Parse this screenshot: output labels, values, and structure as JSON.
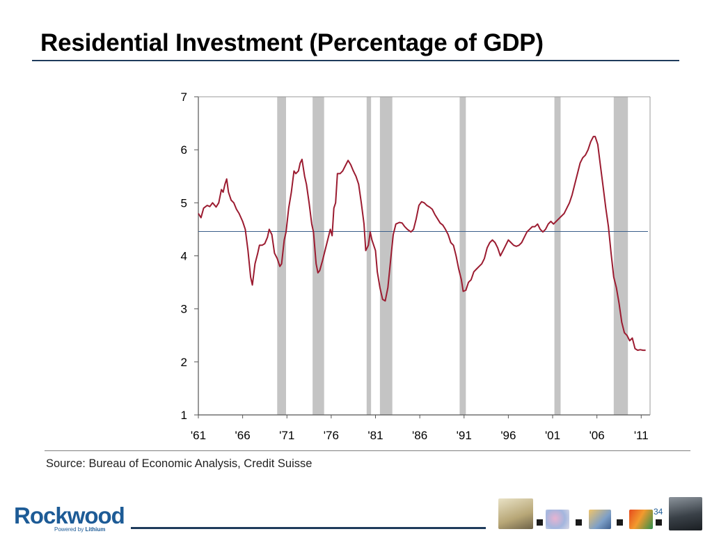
{
  "slide": {
    "title": "Residential Investment (Percentage of GDP)",
    "source": "Source: Bureau of Economic Analysis, Credit Suisse",
    "page_number": "34",
    "logo": {
      "word": "Rockwood",
      "tagline_prefix": "Powered by ",
      "tagline_brand": "Lithium"
    },
    "colors": {
      "title_rule": "#1f3b5c",
      "logo": "#1d5b96"
    }
  },
  "chart_data": {
    "type": "line",
    "title": "",
    "xlabel": "",
    "ylabel": "",
    "xlim": [
      1961,
      2012
    ],
    "ylim": [
      1,
      7
    ],
    "yticks": [
      1,
      2,
      3,
      4,
      5,
      6,
      7
    ],
    "xticks": [
      {
        "value": 1961,
        "label": "'61"
      },
      {
        "value": 1966,
        "label": "'66"
      },
      {
        "value": 1971,
        "label": "'71"
      },
      {
        "value": 1976,
        "label": "'76"
      },
      {
        "value": 1981,
        "label": "'81"
      },
      {
        "value": 1986,
        "label": "'86"
      },
      {
        "value": 1991,
        "label": "'91"
      },
      {
        "value": 1996,
        "label": "'96"
      },
      {
        "value": 2001,
        "label": "'01"
      },
      {
        "value": 2006,
        "label": "'06"
      },
      {
        "value": 2011,
        "label": "'11"
      }
    ],
    "grid": false,
    "line_color": "#9b1b30",
    "average_line": {
      "value": 4.46,
      "color": "#3a5f8a"
    },
    "recession_bands": {
      "color": "#c4c4c4",
      "periods": [
        [
          1969.9,
          1970.9
        ],
        [
          1973.9,
          1975.2
        ],
        [
          1980.0,
          1980.5
        ],
        [
          1981.5,
          1982.9
        ],
        [
          1990.5,
          1991.2
        ],
        [
          2001.2,
          2001.9
        ],
        [
          2007.9,
          2009.5
        ]
      ]
    },
    "series": [
      {
        "points": [
          [
            1961.0,
            4.8
          ],
          [
            1961.3,
            4.72
          ],
          [
            1961.6,
            4.9
          ],
          [
            1962.0,
            4.95
          ],
          [
            1962.3,
            4.93
          ],
          [
            1962.6,
            5.0
          ],
          [
            1963.0,
            4.92
          ],
          [
            1963.3,
            5.0
          ],
          [
            1963.6,
            5.25
          ],
          [
            1963.8,
            5.2
          ],
          [
            1964.0,
            5.35
          ],
          [
            1964.2,
            5.45
          ],
          [
            1964.4,
            5.2
          ],
          [
            1964.7,
            5.05
          ],
          [
            1965.0,
            5.0
          ],
          [
            1965.3,
            4.88
          ],
          [
            1965.6,
            4.8
          ],
          [
            1966.0,
            4.65
          ],
          [
            1966.3,
            4.5
          ],
          [
            1966.6,
            4.1
          ],
          [
            1966.9,
            3.6
          ],
          [
            1967.1,
            3.45
          ],
          [
            1967.4,
            3.85
          ],
          [
            1967.7,
            4.05
          ],
          [
            1967.9,
            4.2
          ],
          [
            1968.2,
            4.2
          ],
          [
            1968.5,
            4.23
          ],
          [
            1968.8,
            4.35
          ],
          [
            1969.0,
            4.5
          ],
          [
            1969.3,
            4.4
          ],
          [
            1969.6,
            4.05
          ],
          [
            1969.9,
            3.95
          ],
          [
            1970.2,
            3.8
          ],
          [
            1970.4,
            3.85
          ],
          [
            1970.7,
            4.3
          ],
          [
            1970.9,
            4.45
          ],
          [
            1971.2,
            4.9
          ],
          [
            1971.5,
            5.2
          ],
          [
            1971.8,
            5.6
          ],
          [
            1972.0,
            5.55
          ],
          [
            1972.3,
            5.6
          ],
          [
            1972.5,
            5.75
          ],
          [
            1972.7,
            5.82
          ],
          [
            1973.0,
            5.5
          ],
          [
            1973.2,
            5.35
          ],
          [
            1973.5,
            5.0
          ],
          [
            1973.8,
            4.6
          ],
          [
            1974.0,
            4.45
          ],
          [
            1974.3,
            3.85
          ],
          [
            1974.5,
            3.68
          ],
          [
            1974.7,
            3.72
          ],
          [
            1975.0,
            3.9
          ],
          [
            1975.3,
            4.1
          ],
          [
            1975.6,
            4.3
          ],
          [
            1975.9,
            4.5
          ],
          [
            1976.1,
            4.38
          ],
          [
            1976.3,
            4.9
          ],
          [
            1976.5,
            5.0
          ],
          [
            1976.7,
            5.55
          ],
          [
            1977.0,
            5.55
          ],
          [
            1977.3,
            5.6
          ],
          [
            1977.6,
            5.7
          ],
          [
            1977.9,
            5.8
          ],
          [
            1978.2,
            5.72
          ],
          [
            1978.5,
            5.6
          ],
          [
            1978.8,
            5.5
          ],
          [
            1979.1,
            5.35
          ],
          [
            1979.4,
            5.0
          ],
          [
            1979.7,
            4.6
          ],
          [
            1979.9,
            4.1
          ],
          [
            1980.2,
            4.2
          ],
          [
            1980.4,
            4.45
          ],
          [
            1980.6,
            4.3
          ],
          [
            1981.0,
            4.1
          ],
          [
            1981.2,
            3.7
          ],
          [
            1981.5,
            3.4
          ],
          [
            1981.8,
            3.18
          ],
          [
            1982.1,
            3.15
          ],
          [
            1982.4,
            3.4
          ],
          [
            1982.7,
            3.9
          ],
          [
            1983.0,
            4.4
          ],
          [
            1983.3,
            4.6
          ],
          [
            1983.7,
            4.63
          ],
          [
            1984.0,
            4.62
          ],
          [
            1984.3,
            4.55
          ],
          [
            1984.6,
            4.5
          ],
          [
            1985.0,
            4.45
          ],
          [
            1985.3,
            4.5
          ],
          [
            1985.6,
            4.7
          ],
          [
            1985.9,
            4.95
          ],
          [
            1986.2,
            5.02
          ],
          [
            1986.5,
            5.0
          ],
          [
            1986.8,
            4.95
          ],
          [
            1987.1,
            4.92
          ],
          [
            1987.4,
            4.88
          ],
          [
            1987.7,
            4.78
          ],
          [
            1988.0,
            4.7
          ],
          [
            1988.3,
            4.62
          ],
          [
            1988.6,
            4.58
          ],
          [
            1988.9,
            4.5
          ],
          [
            1989.2,
            4.4
          ],
          [
            1989.5,
            4.25
          ],
          [
            1989.8,
            4.2
          ],
          [
            1990.1,
            4.0
          ],
          [
            1990.4,
            3.75
          ],
          [
            1990.7,
            3.55
          ],
          [
            1990.9,
            3.33
          ],
          [
            1991.2,
            3.35
          ],
          [
            1991.5,
            3.5
          ],
          [
            1991.8,
            3.55
          ],
          [
            1992.1,
            3.7
          ],
          [
            1992.4,
            3.75
          ],
          [
            1992.7,
            3.8
          ],
          [
            1993.0,
            3.85
          ],
          [
            1993.3,
            3.95
          ],
          [
            1993.6,
            4.15
          ],
          [
            1993.9,
            4.25
          ],
          [
            1994.2,
            4.3
          ],
          [
            1994.5,
            4.25
          ],
          [
            1994.8,
            4.15
          ],
          [
            1995.1,
            4.0
          ],
          [
            1995.4,
            4.1
          ],
          [
            1995.7,
            4.2
          ],
          [
            1996.0,
            4.3
          ],
          [
            1996.3,
            4.25
          ],
          [
            1996.6,
            4.2
          ],
          [
            1996.9,
            4.18
          ],
          [
            1997.2,
            4.2
          ],
          [
            1997.5,
            4.25
          ],
          [
            1997.8,
            4.35
          ],
          [
            1998.1,
            4.45
          ],
          [
            1998.4,
            4.5
          ],
          [
            1998.7,
            4.55
          ],
          [
            1999.0,
            4.55
          ],
          [
            1999.3,
            4.6
          ],
          [
            1999.6,
            4.5
          ],
          [
            1999.9,
            4.45
          ],
          [
            2000.2,
            4.5
          ],
          [
            2000.5,
            4.6
          ],
          [
            2000.8,
            4.65
          ],
          [
            2001.1,
            4.6
          ],
          [
            2001.4,
            4.65
          ],
          [
            2001.7,
            4.7
          ],
          [
            2002.0,
            4.75
          ],
          [
            2002.3,
            4.8
          ],
          [
            2002.6,
            4.9
          ],
          [
            2002.9,
            5.0
          ],
          [
            2003.2,
            5.15
          ],
          [
            2003.5,
            5.35
          ],
          [
            2003.8,
            5.55
          ],
          [
            2004.1,
            5.75
          ],
          [
            2004.4,
            5.85
          ],
          [
            2004.7,
            5.9
          ],
          [
            2005.0,
            6.0
          ],
          [
            2005.3,
            6.15
          ],
          [
            2005.6,
            6.25
          ],
          [
            2005.8,
            6.25
          ],
          [
            2006.1,
            6.1
          ],
          [
            2006.4,
            5.7
          ],
          [
            2006.7,
            5.3
          ],
          [
            2007.0,
            4.9
          ],
          [
            2007.3,
            4.55
          ],
          [
            2007.6,
            4.05
          ],
          [
            2007.9,
            3.6
          ],
          [
            2008.2,
            3.4
          ],
          [
            2008.5,
            3.1
          ],
          [
            2008.8,
            2.75
          ],
          [
            2009.1,
            2.55
          ],
          [
            2009.4,
            2.5
          ],
          [
            2009.7,
            2.4
          ],
          [
            2010.0,
            2.45
          ],
          [
            2010.3,
            2.25
          ],
          [
            2010.6,
            2.22
          ],
          [
            2010.9,
            2.23
          ],
          [
            2011.2,
            2.22
          ],
          [
            2011.5,
            2.22
          ]
        ]
      }
    ]
  }
}
